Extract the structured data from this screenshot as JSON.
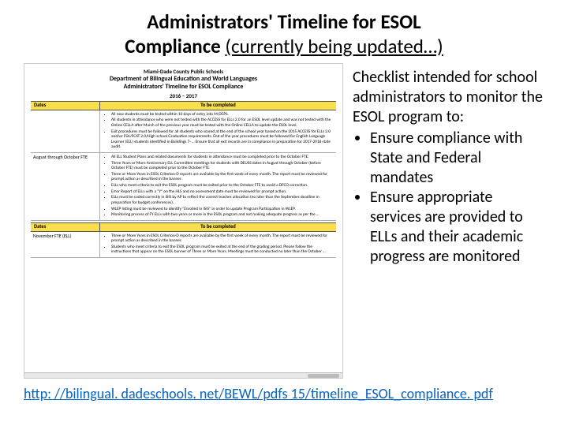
{
  "title": {
    "line1": "Administrators' Timeline for ESOL",
    "line2_bold": "Compliance ",
    "line2_sub": "(currently being updated…)"
  },
  "thumb": {
    "h1": "Miami-Dade County Public Schools",
    "h2": "Department of Bilingual Education and World Languages",
    "h3": "Administrators' Timeline for ESOL Compliance",
    "year": "2016 – 2017",
    "bar_dates": "Dates",
    "bar_complete": "To be completed",
    "row1_left": "",
    "row1_items": [
      "All new students must be tested within 10 days of entry into M-DCPS.",
      "All students in attendance who were not tested with the ACCESS for ELLs 2.0 for an ESOL level update and was not tested with the Online CELLA after March of the previous year must be tested with the Online CELLA to update the ESOL level.",
      "Exit procedures must be followed for all students who scored at the end of the school year based on the 2015 ACCESS for ELLs 2.0 and/or FSA/FCAT 2.0/High school Graduation requirements. End of the year procedures must be followed for English Language Learner (ELL) students identified in Buildings 7–… Ensure that all exit records are in compliance in preparation for 2017-2018 state audit."
    ],
    "row2_left": "August through October FTE",
    "row2_items": [
      "All ELL Student Plans and related documents for students in attendance must be completed prior to the October FTE.",
      "Three Years or More Anniversary ELL Committee meetings for students with DEUSS dates in August through October (before October FTE) must be completed prior to the October FTE.",
      "Three or More Years in ESOL Criterion-D reports are available by the first week of every month. The report must be reviewed for prompt action as described in the banner.",
      "ELLs who meet criteria to exit the ESOL program must be exited prior to the October FTE to avoid a DFCO correction.",
      "Error Report of ELLs with a \"Y\" on the HLS and no assessment date must be reviewed for prompt action.",
      "ELLs must be coded correctly in ISIS by AP to reflect the correct teacher allocation (no later than the September deadline in preparation for budget conferences).",
      "WLEP listing must be reviewed to identify \"Enrolled in ISIS\" in order to update Program Participation in WLEP.",
      "Monitoring process of FY ELLs with two years or more in the ESOL program and not making adequate progress as per the …"
    ],
    "row3_left": "November FTE (ELL)",
    "row3_items": [
      "Three or More Years in ESOL Criterion-D reports are available by the first week of every month. The report must be reviewed for prompt action as described in the banner.",
      "Students who meet criteria to exit the ESOL program must be exited at the end of the grading period. Please follow the instructions that appear on the ESOL banner of Three or More Years. Meetings must be conducted no later than the October …"
    ]
  },
  "right": {
    "intro": "Checklist intended for school administrators to  monitor the ESOL program to:",
    "b1": "Ensure compliance with State and Federal mandates",
    "b2": "Ensure appropriate services are provided to ELLs and their academic progress are monitored"
  },
  "link": "http: //bilingual. dadeschools. net/BEWL/pdfs 15/timeline_ESOL_compliance. pdf"
}
